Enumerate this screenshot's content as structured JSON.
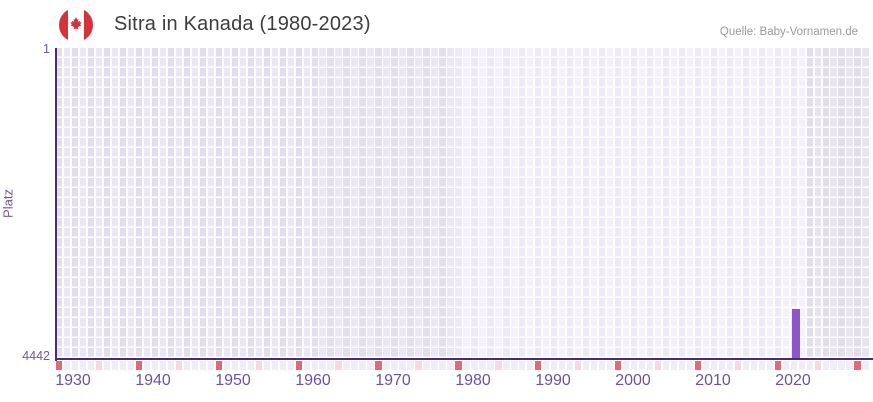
{
  "header": {
    "title": "Sitra in Kanada (1980-2023)",
    "source": "Quelle: Baby-Vornamen.de",
    "flag_icon": "canada-flag-icon"
  },
  "chart_data": {
    "type": "bar",
    "title": "Sitra in Kanada (1980-2023)",
    "xlabel": "",
    "ylabel": "Platz",
    "grid": true,
    "legend": false,
    "y_axis": {
      "top_label": "1",
      "bottom_label": "4442",
      "min": 1,
      "max": 4442,
      "inverted": true
    },
    "x_axis": {
      "start_year": 1928,
      "end_year": 2029,
      "tick_labels": [
        "1930",
        "1940",
        "1950",
        "1960",
        "1970",
        "1980",
        "1990",
        "2000",
        "2010",
        "2020"
      ]
    },
    "series": [
      {
        "name": "Platz",
        "points": [
          {
            "year": 2020,
            "rank": 3728
          }
        ]
      }
    ],
    "regions": [
      {
        "name": "pre-data",
        "from": 1928,
        "to": 1977
      },
      {
        "name": "data",
        "from": 1978,
        "to": 2021
      },
      {
        "name": "post-data",
        "from": 2022,
        "to": 2029
      }
    ],
    "bottom_ticks": {
      "major_years": [
        1928,
        1938,
        1948,
        1958,
        1968,
        1978,
        1988,
        1998,
        2008,
        2018,
        2028
      ],
      "minor_years": [
        1933,
        1943,
        1953,
        1963,
        1973,
        1983,
        1993,
        2003,
        2013,
        2023
      ]
    },
    "colors": {
      "bar": "#8c56c8",
      "axis": "#472c78",
      "tick_label": "#6d52a3",
      "major_tick": "#e06a73",
      "minor_tick": "#f5d8e3",
      "tick_default": "#f0edf8",
      "grid_line": "#ffffff",
      "region_pre_even": "#e3ddee",
      "region_pre_odd": "#ebe6f4",
      "region_data_even": "#eee9f7",
      "region_data_odd": "#f5f1fb",
      "region_post_even": "#e1dde9",
      "region_post_odd": "#e8e5ef",
      "flag_red": "#d5333b",
      "title_text": "#3d3d3d",
      "source_text": "#9b9b9b"
    }
  }
}
